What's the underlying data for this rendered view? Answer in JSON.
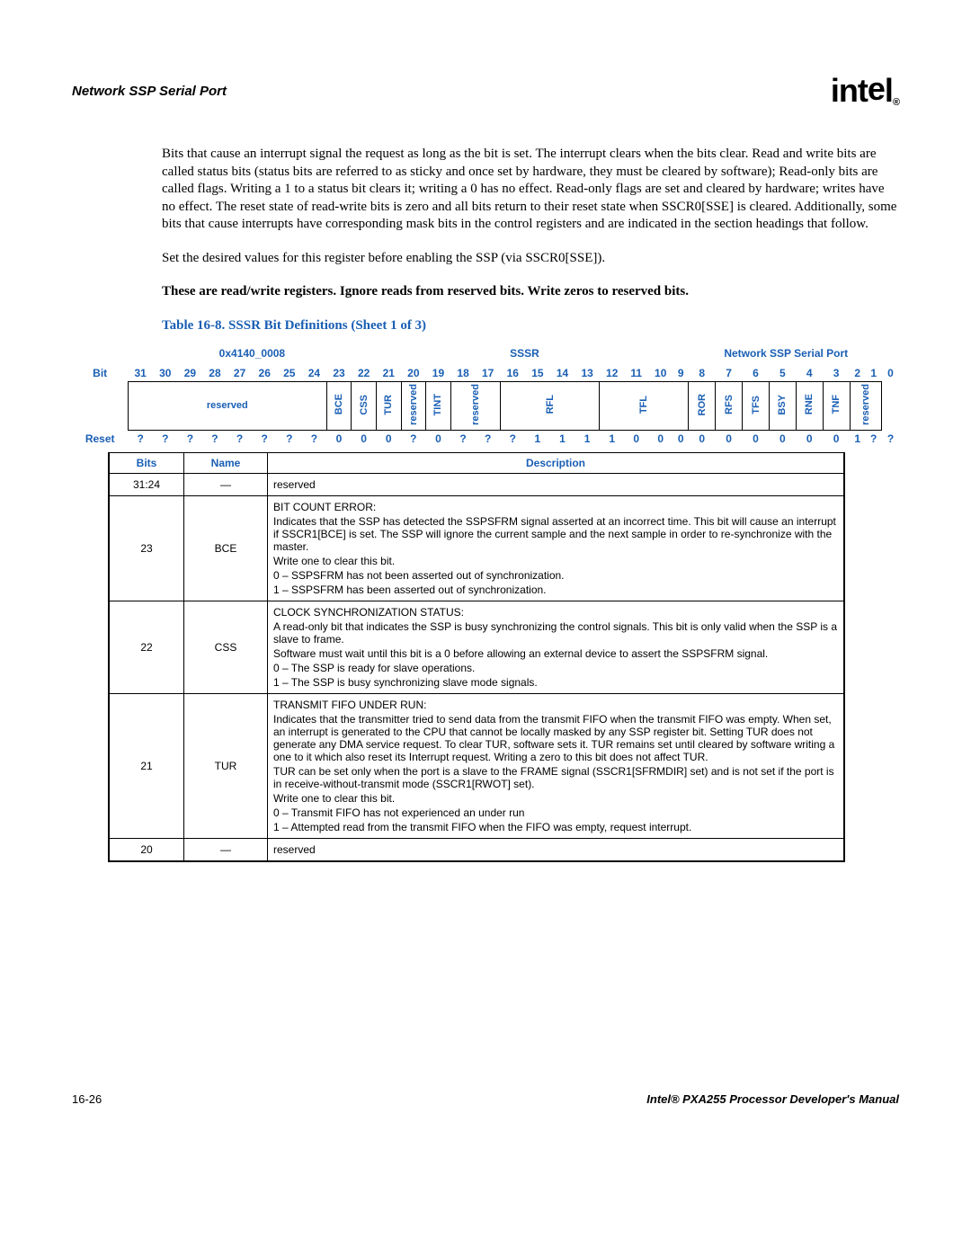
{
  "header": {
    "title": "Network SSP Serial Port",
    "logo_text_1": "int",
    "logo_text_2": "e",
    "logo_text_3": "l",
    "logo_sub": "®"
  },
  "para1": "Bits that cause an interrupt signal the request as long as the bit is set. The interrupt clears when the bits clear. Read and write bits are called status bits (status bits are referred to as sticky and once set by hardware, they must be cleared by software); Read-only bits are called flags. Writing a 1 to a status bit clears it; writing a 0 has no effect. Read-only flags are set and cleared by hardware; writes have no effect. The reset state of read-write bits is zero and all bits return to their reset state when SSCR0[SSE] is cleared. Additionally, some bits that cause interrupts have corresponding mask bits in the control registers and are indicated in the section headings that follow.",
  "para2": "Set the desired values for this register before enabling the SSP (via SSCR0[SSE]).",
  "para3": "These are read/write registers. Ignore reads from reserved bits. Write zeros to reserved bits.",
  "table_title": "Table 16-8. SSSR Bit Definitions (Sheet 1 of 3)",
  "reg_meta": {
    "addr": "0x4140_0008",
    "name": "SSSR",
    "port": "Network SSP Serial Port"
  },
  "labels": {
    "bit": "Bit",
    "reset": "Reset"
  },
  "bit_numbers": [
    "31",
    "30",
    "29",
    "28",
    "27",
    "26",
    "25",
    "24",
    "23",
    "22",
    "21",
    "20",
    "19",
    "18",
    "17",
    "16",
    "15",
    "14",
    "13",
    "12",
    "11",
    "10",
    "9",
    "8",
    "7",
    "6",
    "5",
    "4",
    "3",
    "2",
    "1",
    "0"
  ],
  "fields": [
    {
      "label": "reserved",
      "span": 8,
      "vertical": false
    },
    {
      "label": "BCE",
      "span": 1,
      "vertical": true
    },
    {
      "label": "CSS",
      "span": 1,
      "vertical": true
    },
    {
      "label": "TUR",
      "span": 1,
      "vertical": true
    },
    {
      "label": "reserved",
      "span": 1,
      "vertical": true
    },
    {
      "label": "TINT",
      "span": 1,
      "vertical": true
    },
    {
      "label": "reserved",
      "span": 2,
      "vertical": true
    },
    {
      "label": "RFL",
      "span": 4,
      "vertical": true
    },
    {
      "label": "TFL",
      "span": 4,
      "vertical": true
    },
    {
      "label": "ROR",
      "span": 1,
      "vertical": true
    },
    {
      "label": "RFS",
      "span": 1,
      "vertical": true
    },
    {
      "label": "TFS",
      "span": 1,
      "vertical": true
    },
    {
      "label": "BSY",
      "span": 1,
      "vertical": true
    },
    {
      "label": "RNE",
      "span": 1,
      "vertical": true
    },
    {
      "label": "TNF",
      "span": 1,
      "vertical": true
    },
    {
      "label": "reserved",
      "span": 2,
      "vertical": true
    }
  ],
  "reset_vals": [
    "?",
    "?",
    "?",
    "?",
    "?",
    "?",
    "?",
    "?",
    "0",
    "0",
    "0",
    "?",
    "0",
    "?",
    "?",
    "?",
    "1",
    "1",
    "1",
    "1",
    "0",
    "0",
    "0",
    "0",
    "0",
    "0",
    "0",
    "0",
    "0",
    "1",
    "?",
    "?"
  ],
  "desc_headers": {
    "bits": "Bits",
    "name": "Name",
    "desc": "Description"
  },
  "rows": [
    {
      "bits": "31:24",
      "name": "—",
      "desc": [
        "reserved"
      ]
    },
    {
      "bits": "23",
      "name": "BCE",
      "desc": [
        "BIT COUNT ERROR:",
        "Indicates that the SSP has detected the SSPSFRM signal asserted at an incorrect time. This bit will cause an interrupt if SSCR1[BCE] is set. The SSP will ignore the current sample and the next sample in order to re-synchronize with the master.",
        "Write one to clear this bit.",
        "0 –  SSPSFRM has not been asserted out of synchronization.",
        "1 –  SSPSFRM has been asserted out of synchronization."
      ]
    },
    {
      "bits": "22",
      "name": "CSS",
      "desc": [
        "CLOCK SYNCHRONIZATION STATUS:",
        "A read-only bit that indicates the SSP is busy synchronizing the control signals. This bit is only valid when the SSP is a slave to frame.",
        "Software must wait until this bit is a 0 before allowing an external device to assert the SSPSFRM signal.",
        "0 –  The SSP is ready for slave operations.",
        "1 –  The SSP is busy synchronizing slave mode signals."
      ]
    },
    {
      "bits": "21",
      "name": "TUR",
      "desc": [
        "TRANSMIT FIFO UNDER RUN:",
        "Indicates that the transmitter tried to send data from the transmit FIFO when the transmit FIFO was empty. When set, an interrupt is generated to the CPU that cannot be locally masked by any SSP register bit. Setting TUR does not generate any DMA service request. To clear TUR, software sets it. TUR remains set until cleared by software writing a one to it which also reset its Interrupt request. Writing a zero to this bit does not affect TUR.",
        "TUR can be set only when the port is a slave to the FRAME signal (SSCR1[SFRMDIR] set) and is not set if the port is in receive-without-transmit mode (SSCR1[RWOT] set).",
        "Write one to clear this bit.",
        "0 –  Transmit FIFO has not experienced an under run",
        "1 –  Attempted read from the transmit FIFO when the FIFO was empty, request interrupt."
      ]
    },
    {
      "bits": "20",
      "name": "—",
      "desc": [
        "reserved"
      ]
    }
  ],
  "footer": {
    "left": "16-26",
    "right": "Intel® PXA255 Processor Developer's Manual"
  }
}
